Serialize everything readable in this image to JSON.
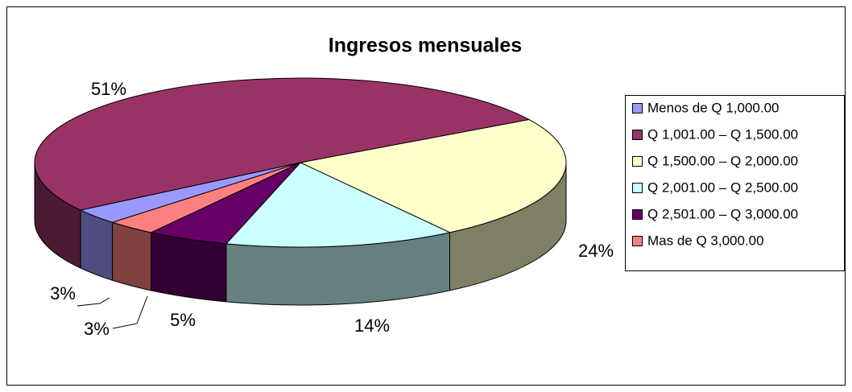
{
  "chart_data": {
    "type": "pie3d",
    "title": "Ingresos mensuales",
    "categories": [
      "Menos de Q 1,000.00",
      "Q 1,001.00 – Q 1,500.00",
      "Q 1,500.00 – Q 2,000.00",
      "Q 2,001.00 – Q 2,500.00",
      "Q 2,501.00 – Q 3,000.00",
      "Mas de Q 3,000.00"
    ],
    "values": [
      3,
      51,
      24,
      14,
      5,
      3
    ],
    "value_labels": [
      "3%",
      "51%",
      "24%",
      "14%",
      "5%",
      "3%"
    ],
    "colors": [
      "#9999ff",
      "#993366",
      "#ffffcc",
      "#ccffff",
      "#660066",
      "#ff8080"
    ],
    "legend": "right"
  }
}
